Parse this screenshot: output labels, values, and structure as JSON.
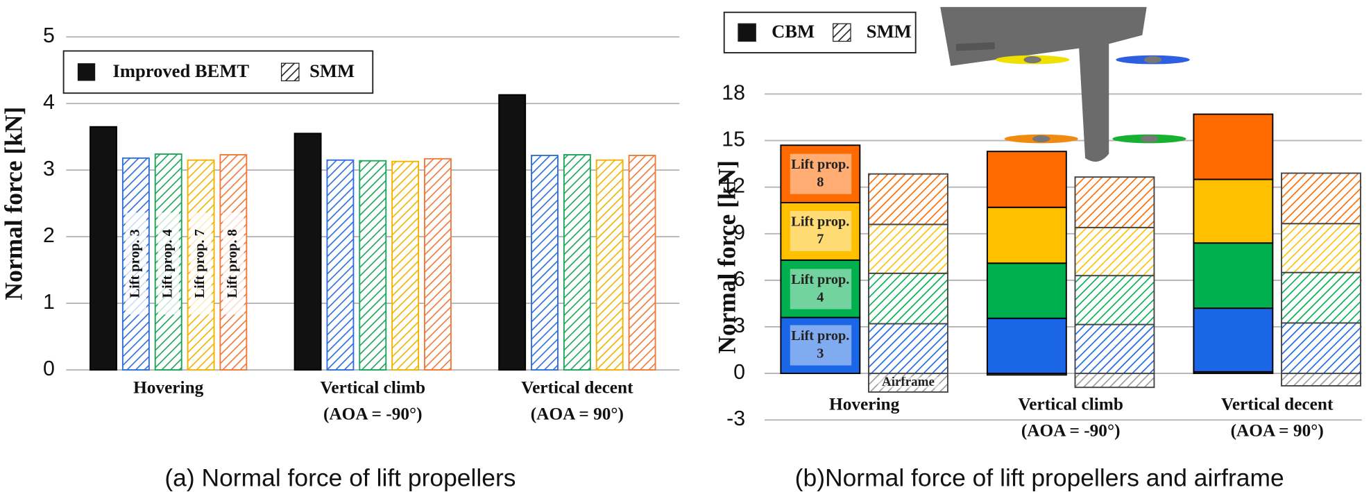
{
  "chart_data": [
    {
      "type": "bar",
      "ylabel": "Normal force [kN]",
      "caption": "(a) Normal force of lift propellers",
      "categories": [
        [
          "Hovering"
        ],
        [
          "Vertical climb",
          "(AOA = -90°)"
        ],
        [
          "Vertical decent",
          "(AOA = 90°)"
        ]
      ],
      "series": [
        {
          "name": "Improved BEMT",
          "color": "#111111",
          "pattern": "solid",
          "values": [
            3.65,
            3.55,
            4.13
          ]
        },
        {
          "name": "Lift prop. 3",
          "color": "#2f6fdc",
          "pattern": "hatch",
          "values": [
            3.18,
            3.15,
            3.22
          ]
        },
        {
          "name": "Lift prop. 4",
          "color": "#1fa55a",
          "pattern": "hatch",
          "values": [
            3.24,
            3.14,
            3.23
          ]
        },
        {
          "name": "Lift prop. 7",
          "color": "#f0b400",
          "pattern": "hatch",
          "values": [
            3.15,
            3.13,
            3.15
          ]
        },
        {
          "name": "Lift prop. 8",
          "color": "#f07a3c",
          "pattern": "hatch",
          "values": [
            3.23,
            3.17,
            3.22
          ]
        }
      ],
      "hatch_legend": "SMM",
      "ylim": [
        0,
        5
      ],
      "yticks": [
        0,
        1,
        2,
        3,
        4,
        5
      ],
      "grid": true
    },
    {
      "type": "stacked_bar",
      "ylabel": "Normal force [kN]",
      "caption": "(b)Normal force of lift propellers and airframe",
      "categories": [
        [
          "Hovering"
        ],
        [
          "Vertical climb",
          "(AOA = -90°)"
        ],
        [
          "Vertical decent",
          "(AOA = 90°)"
        ]
      ],
      "bars": [
        "CBM",
        "SMM"
      ],
      "bar_patterns": [
        "solid",
        "hatch"
      ],
      "series": [
        {
          "name": "Airframe",
          "color": "#9a9a9a",
          "values": [
            [
              0,
              -1.2
            ],
            [
              -0.1,
              -0.9
            ],
            [
              0.1,
              -0.8
            ]
          ]
        },
        {
          "name": "Lift prop. 3",
          "color": "#1a66e6",
          "values": [
            [
              3.6,
              3.2
            ],
            [
              3.55,
              3.15
            ],
            [
              4.1,
              3.25
            ]
          ]
        },
        {
          "name": "Lift prop. 4",
          "color": "#00b04f",
          "values": [
            [
              3.7,
              3.25
            ],
            [
              3.55,
              3.15
            ],
            [
              4.2,
              3.25
            ]
          ]
        },
        {
          "name": "Lift prop. 7",
          "color": "#ffc000",
          "values": [
            [
              3.7,
              3.15
            ],
            [
              3.6,
              3.1
            ],
            [
              4.1,
              3.15
            ]
          ]
        },
        {
          "name": "Lift prop. 8",
          "color": "#ff6a00",
          "values": [
            [
              3.7,
              3.25
            ],
            [
              3.6,
              3.25
            ],
            [
              4.2,
              3.25
            ]
          ]
        }
      ],
      "ylim": [
        -3,
        18
      ],
      "yticks": [
        -3,
        0,
        3,
        6,
        9,
        12,
        15,
        18
      ],
      "grid": true
    }
  ]
}
